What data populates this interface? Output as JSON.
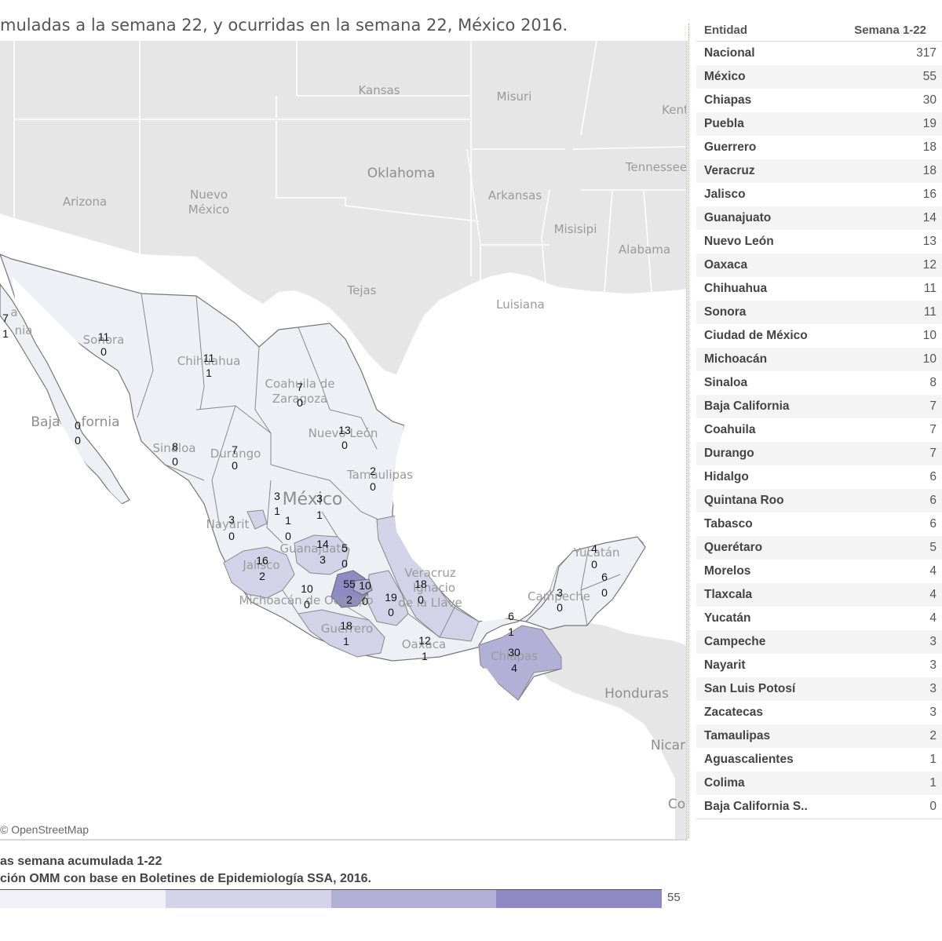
{
  "title": "muladas a la semana 22, y ocurridas en la semana 22, México 2016.",
  "map": {
    "attribution": "© OpenStreetMap",
    "colors": {
      "land": "#e6e6e6",
      "border": "#ffffff",
      "stateLine": "#888888",
      "water": "#ffffff"
    },
    "geo_labels": [
      "Kansas",
      "Misuri",
      "Kent",
      "Oklahoma",
      "Tennessee",
      "Arizona",
      "Nuevo",
      "México",
      "Arkansas",
      "Misisipi",
      "Alabama",
      "Tejas",
      "Luisiana",
      "Honduras",
      "Nicar",
      "Co",
      "Baja",
      "fornia",
      "México"
    ],
    "states": [
      {
        "name": "Baja California (partial)",
        "acc": "7",
        "week": "1"
      },
      {
        "name": "Sonora",
        "acc": "11",
        "week": "0"
      },
      {
        "name": "Chihuahua",
        "acc": "11",
        "week": "1"
      },
      {
        "name": "Coahuila",
        "acc": "7",
        "week": "0"
      },
      {
        "name": "Baja California Sur",
        "acc": "0",
        "week": "0"
      },
      {
        "name": "Sinaloa",
        "acc": "8",
        "week": "0"
      },
      {
        "name": "Durango",
        "acc": "7",
        "week": "0"
      },
      {
        "name": "Nuevo León",
        "acc": "13",
        "week": "0"
      },
      {
        "name": "Tamaulipas",
        "acc": "2",
        "week": "0"
      },
      {
        "name": "Zacatecas",
        "acc": "3",
        "week": "1"
      },
      {
        "name": "San Luis Potosí",
        "acc": "3",
        "week": "1"
      },
      {
        "name": "Nayarit",
        "acc": "3",
        "week": "0"
      },
      {
        "name": "Aguascalientes",
        "acc": "1",
        "week": "0"
      },
      {
        "name": "Guanajuato",
        "acc": "14",
        "week": "3"
      },
      {
        "name": "Querétaro",
        "acc": "5",
        "week": "0"
      },
      {
        "name": "Jalisco",
        "acc": "16",
        "week": "2"
      },
      {
        "name": "Michoacán",
        "acc": "10",
        "week": "0"
      },
      {
        "name": "México",
        "acc": "55",
        "week": "2"
      },
      {
        "name": "Ciudad de México",
        "acc": "10",
        "week": "0"
      },
      {
        "name": "Morelos/Puebla",
        "acc": "19",
        "week": "0"
      },
      {
        "name": "Veracruz",
        "acc": "18",
        "week": "0"
      },
      {
        "name": "Guerrero",
        "acc": "18",
        "week": "1"
      },
      {
        "name": "Oaxaca",
        "acc": "12",
        "week": "1"
      },
      {
        "name": "Tabasco",
        "acc": "6",
        "week": "1"
      },
      {
        "name": "Chiapas",
        "acc": "30",
        "week": "4"
      },
      {
        "name": "Campeche",
        "acc": "3",
        "week": "0"
      },
      {
        "name": "Yucatán",
        "acc": "4",
        "week": "0"
      },
      {
        "name": "Quintana Roo",
        "acc": "6",
        "week": "0"
      }
    ],
    "overlay_words": [
      "a",
      "nia",
      "Sonora",
      "Chihuahua",
      "Coahuila de",
      "Zaragoza",
      "Nuevo León",
      "Tamaulipas",
      "Sinaloa",
      "Durango",
      "Nayarit",
      "Jalisco",
      "Guanajuato",
      "Michoacán de Ocampo",
      "Guerrero",
      "Oaxaca",
      "Chiapas",
      "Campeche",
      "Yucatán",
      "Veracruz",
      "Ignacio",
      "de la Llave"
    ]
  },
  "table": {
    "header": {
      "entity": "Entidad",
      "value": "Semana 1-22"
    },
    "rows": [
      {
        "entity": "Nacional",
        "value": "317"
      },
      {
        "entity": "México",
        "value": "55"
      },
      {
        "entity": "Chiapas",
        "value": "30"
      },
      {
        "entity": "Puebla",
        "value": "19"
      },
      {
        "entity": "Guerrero",
        "value": "18"
      },
      {
        "entity": "Veracruz",
        "value": "18"
      },
      {
        "entity": "Jalisco",
        "value": "16"
      },
      {
        "entity": "Guanajuato",
        "value": "14"
      },
      {
        "entity": "Nuevo León",
        "value": "13"
      },
      {
        "entity": "Oaxaca",
        "value": "12"
      },
      {
        "entity": "Chihuahua",
        "value": "11"
      },
      {
        "entity": "Sonora",
        "value": "11"
      },
      {
        "entity": "Ciudad de México",
        "value": "10"
      },
      {
        "entity": "Michoacán",
        "value": "10"
      },
      {
        "entity": "Sinaloa",
        "value": "8"
      },
      {
        "entity": "Baja California",
        "value": "7"
      },
      {
        "entity": "Coahuila",
        "value": "7"
      },
      {
        "entity": "Durango",
        "value": "7"
      },
      {
        "entity": "Hidalgo",
        "value": "6"
      },
      {
        "entity": "Quintana Roo",
        "value": "6"
      },
      {
        "entity": "Tabasco",
        "value": "6"
      },
      {
        "entity": "Querétaro",
        "value": "5"
      },
      {
        "entity": "Morelos",
        "value": "4"
      },
      {
        "entity": "Tlaxcala",
        "value": "4"
      },
      {
        "entity": "Yucatán",
        "value": "4"
      },
      {
        "entity": "Campeche",
        "value": "3"
      },
      {
        "entity": "Nayarit",
        "value": "3"
      },
      {
        "entity": "San Luis Potosí",
        "value": "3"
      },
      {
        "entity": "Zacatecas",
        "value": "3"
      },
      {
        "entity": "Tamaulipas",
        "value": "2"
      },
      {
        "entity": "Aguascalientes",
        "value": "1"
      },
      {
        "entity": "Colima",
        "value": "1"
      },
      {
        "entity": "Baja California S..",
        "value": "0"
      }
    ]
  },
  "legend": {
    "line1": "as semana acumulada 1-22",
    "line2": "ción OMM con base en Boletines de Epidemiología SSA, 2016.",
    "max_value": "55",
    "colors": [
      "#f1f0f7",
      "#d3d2e9",
      "#b3b0d8",
      "#8f8ac3"
    ]
  }
}
